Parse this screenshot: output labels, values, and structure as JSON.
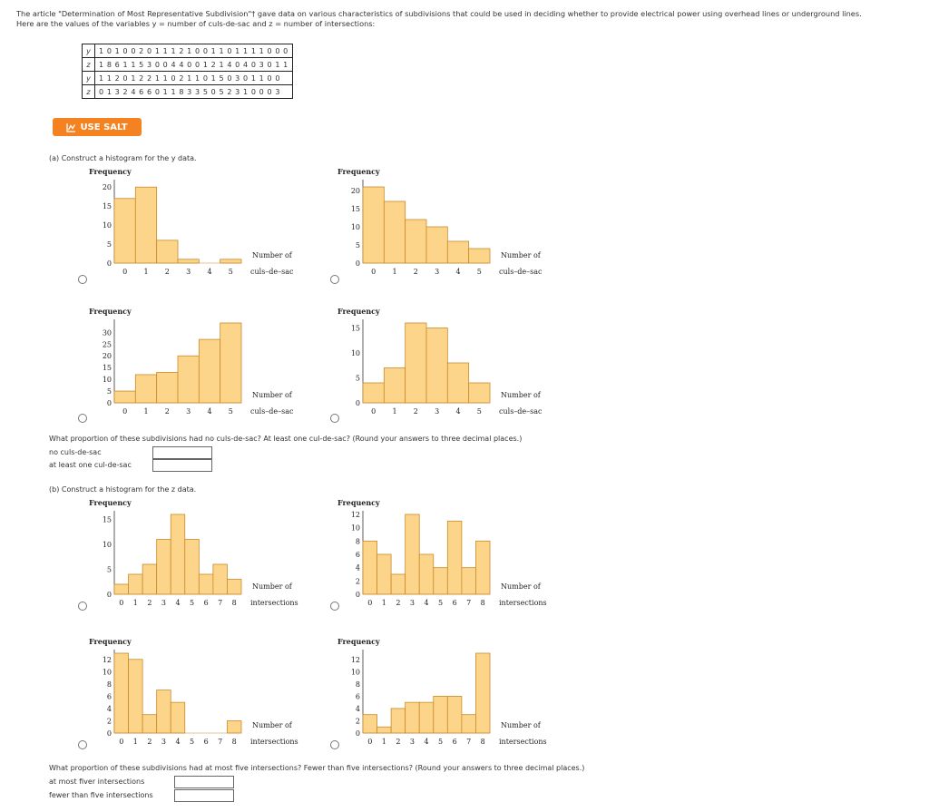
{
  "intro": {
    "line1": "The article \"Determination of Most Representative Subdivision\"† gave data on various characteristics of subdivisions that could be used in deciding whether to provide electrical power using overhead lines or underground lines.",
    "line2": "Here are the values of the variables y = number of culs-de-sac and z = number of intersections:"
  },
  "data_table": {
    "rows": [
      {
        "var": "y",
        "values": "1 0 1 0 0 2 0 1 1 1 2 1 0 0 1 1 0 1 1 1 1 0 0 0"
      },
      {
        "var": "z",
        "values": "1 8 6 1 1 5 3 0 0 4 4 0 0 1 2 1 4 0 4 0 3 0 1 1"
      },
      {
        "var": "y",
        "values": "1 1 2 0 1 2 2 1 1 0 2 1 1 0 1 5 0 3 0 1 1 0 0"
      },
      {
        "var": "z",
        "values": "0 1 3 2 4 6 6 0 1 1 8 3 3 5 0 5 2 3 1 0 0 0 3"
      }
    ]
  },
  "salt_button": {
    "label": "USE SALT"
  },
  "part_a": {
    "prompt": "(a) Construct a histogram for the y data.",
    "proportion_question": "What proportion of these subdivisions had no culs-de-sac? At least one cul-de-sac? (Round your answers to three decimal places.)",
    "field1_label": "no culs-de-sac",
    "field1_value": "",
    "field2_label": "at least one cul-de-sac",
    "field2_value": ""
  },
  "part_b": {
    "prompt": "(b) Construct a histogram for the z data.",
    "proportion_question": "What proportion of these subdivisions had at most five intersections? Fewer than five intersections? (Round your answers to three decimal places.)",
    "field1_label": "at most fiver intersections",
    "field1_value": "",
    "field2_label": "fewer than five intersections",
    "field2_value": ""
  },
  "chart_data": [
    {
      "type": "bar",
      "ylabel": "Frequency",
      "xlabel_lines": [
        "Number of",
        "culs–de–sac"
      ],
      "categories": [
        "0",
        "1",
        "2",
        "3",
        "4",
        "5"
      ],
      "values": [
        17,
        20,
        6,
        1,
        0,
        1
      ],
      "yticks": [
        0,
        5,
        10,
        15,
        20
      ],
      "ylim": [
        0,
        21
      ]
    },
    {
      "type": "bar",
      "ylabel": "Frequency",
      "xlabel_lines": [
        "Number of",
        "culs–de–sac"
      ],
      "categories": [
        "0",
        "1",
        "2",
        "3",
        "4",
        "5"
      ],
      "values": [
        21,
        17,
        12,
        10,
        6,
        4
      ],
      "yticks": [
        0,
        5,
        10,
        15,
        20
      ],
      "ylim": [
        0,
        22
      ]
    },
    {
      "type": "bar",
      "ylabel": "Frequency",
      "xlabel_lines": [
        "Number of",
        "culs–de–sac"
      ],
      "categories": [
        "0",
        "1",
        "2",
        "3",
        "4",
        "5"
      ],
      "values": [
        5,
        12,
        13,
        20,
        27,
        34
      ],
      "yticks": [
        0,
        5,
        10,
        15,
        20,
        25,
        30
      ],
      "ylim": [
        0,
        34
      ]
    },
    {
      "type": "bar",
      "ylabel": "Frequency",
      "xlabel_lines": [
        "Number of",
        "culs–de–sac"
      ],
      "categories": [
        "0",
        "1",
        "2",
        "3",
        "4",
        "5"
      ],
      "values": [
        4,
        7,
        16,
        15,
        8,
        4
      ],
      "yticks": [
        0,
        5,
        10,
        15
      ],
      "ylim": [
        0,
        16
      ]
    },
    {
      "type": "bar",
      "ylabel": "Frequency",
      "xlabel_lines": [
        "Number of",
        "intersections"
      ],
      "categories": [
        "0",
        "1",
        "2",
        "3",
        "4",
        "5",
        "6",
        "7",
        "8"
      ],
      "values": [
        2,
        4,
        6,
        11,
        16,
        11,
        4,
        6,
        3
      ],
      "yticks": [
        0,
        5,
        10,
        15
      ],
      "ylim": [
        0,
        16
      ]
    },
    {
      "type": "bar",
      "ylabel": "Frequency",
      "xlabel_lines": [
        "Number of",
        "intersections"
      ],
      "categories": [
        "0",
        "1",
        "2",
        "3",
        "4",
        "5",
        "6",
        "7",
        "8"
      ],
      "values": [
        8,
        6,
        3,
        12,
        6,
        4,
        11,
        4,
        8
      ],
      "yticks": [
        0,
        2,
        4,
        6,
        8,
        10,
        12
      ],
      "ylim": [
        0,
        12
      ]
    },
    {
      "type": "bar",
      "ylabel": "Frequency",
      "xlabel_lines": [
        "Number of",
        "intersections"
      ],
      "categories": [
        "0",
        "1",
        "2",
        "3",
        "4",
        "5",
        "6",
        "7",
        "8"
      ],
      "values": [
        13,
        12,
        3,
        7,
        5,
        0,
        0,
        0,
        2
      ],
      "yticks": [
        0,
        2,
        4,
        6,
        8,
        10,
        12
      ],
      "ylim": [
        0,
        13
      ]
    },
    {
      "type": "bar",
      "ylabel": "Frequency",
      "xlabel_lines": [
        "Number of",
        "intersections"
      ],
      "categories": [
        "0",
        "1",
        "2",
        "3",
        "4",
        "5",
        "6",
        "7",
        "8"
      ],
      "values": [
        3,
        1,
        4,
        5,
        5,
        6,
        6,
        3,
        13
      ],
      "yticks": [
        0,
        2,
        4,
        6,
        8,
        10,
        12
      ],
      "ylim": [
        0,
        13
      ]
    }
  ],
  "colors": {
    "bar_fill": "#fdd58a",
    "bar_stroke": "#c98a2a",
    "salt_orange": "#f58220"
  }
}
